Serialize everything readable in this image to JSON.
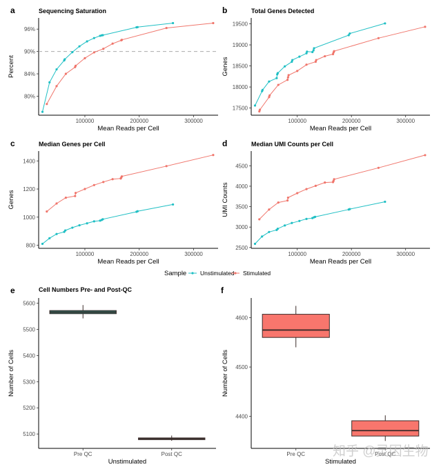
{
  "colors": {
    "unstimulated": "#1FBFC4",
    "stimulated": "#F0756B",
    "box_e_fill": "#2A7A70",
    "box_f_fill": "#F8766D",
    "box_line": "#3a2a28"
  },
  "legend": {
    "title": "Sample",
    "items": [
      "Unstimulated",
      "Stimulated"
    ],
    "position": "bottom-center"
  },
  "watermark": "知乎 @灵因生物",
  "chart_data": [
    {
      "id": "a",
      "letter": "a",
      "type": "line",
      "title": "Sequencing Saturation",
      "xlabel": "Mean Reads per Cell",
      "ylabel": "Percent",
      "xlim": [
        15000,
        345000
      ],
      "xticks": [
        100000,
        200000,
        300000
      ],
      "xtick_labels": [
        "100000",
        "200000",
        "300000"
      ],
      "ylim_px_ticks": true,
      "yticks": [
        0,
        1,
        2,
        3
      ],
      "ytick_labels": [
        "80%",
        "84%",
        "90%",
        "96%"
      ],
      "ylim": [
        -0.85,
        3.5
      ],
      "hline": {
        "value": 2,
        "label": "90%",
        "style": "dashed"
      },
      "series": [
        {
          "name": "Unstimulated",
          "x": [
            22000,
            35000,
            48000,
            62000,
            63000,
            77000,
            90000,
            104000,
            117000,
            128000,
            131000,
            133000,
            195000,
            197000,
            262000
          ],
          "y": [
            -0.7,
            0.62,
            1.2,
            1.6,
            1.65,
            1.97,
            2.23,
            2.45,
            2.6,
            2.7,
            2.72,
            2.73,
            3.08,
            3.09,
            3.27
          ]
        },
        {
          "name": "Stimulated",
          "x": [
            30000,
            48000,
            65000,
            82000,
            83000,
            100000,
            117000,
            134000,
            151000,
            167000,
            168000,
            250000,
            336000
          ],
          "y": [
            -0.35,
            0.45,
            1.0,
            1.3,
            1.36,
            1.7,
            1.96,
            2.12,
            2.35,
            2.5,
            2.52,
            3.05,
            3.27
          ]
        }
      ]
    },
    {
      "id": "b",
      "letter": "b",
      "type": "line",
      "title": "Total Genes Detected",
      "xlabel": "Mean Reads per Cell",
      "ylabel": "Genes",
      "xlim": [
        15000,
        345000
      ],
      "xticks": [
        100000,
        200000,
        300000
      ],
      "xtick_labels": [
        "100000",
        "200000",
        "300000"
      ],
      "yticks": [
        17500,
        18000,
        18500,
        19000,
        19500
      ],
      "ytick_labels": [
        "17500",
        "18000",
        "18500",
        "19000",
        "19500"
      ],
      "ylim": [
        17330,
        19640
      ],
      "series": [
        {
          "name": "Unstimulated",
          "x": [
            22000,
            35000,
            36000,
            48000,
            62000,
            63000,
            64000,
            77000,
            90000,
            91000,
            104000,
            117000,
            118000,
            128000,
            130000,
            131000,
            195000,
            197000,
            262000
          ],
          "y": [
            17560,
            17900,
            17930,
            18130,
            18210,
            18300,
            18330,
            18490,
            18600,
            18640,
            18720,
            18800,
            18840,
            18830,
            18870,
            18920,
            19230,
            19270,
            19510
          ]
        },
        {
          "name": "Stimulated",
          "x": [
            30000,
            31000,
            48000,
            49000,
            65000,
            82000,
            83000,
            84000,
            100000,
            117000,
            134000,
            135000,
            151000,
            166000,
            167000,
            168000,
            250000,
            336000
          ],
          "y": [
            17420,
            17460,
            17760,
            17800,
            18050,
            18170,
            18230,
            18280,
            18380,
            18530,
            18600,
            18640,
            18730,
            18780,
            18820,
            18850,
            19160,
            19430
          ]
        }
      ]
    },
    {
      "id": "c",
      "letter": "c",
      "type": "line",
      "title": "Median Genes per Cell",
      "xlabel": "Mean Reads per Cell",
      "ylabel": "Genes",
      "xlim": [
        15000,
        345000
      ],
      "xticks": [
        100000,
        200000,
        300000
      ],
      "xtick_labels": [
        "100000",
        "200000",
        "300000"
      ],
      "yticks": [
        800,
        1000,
        1200,
        1400
      ],
      "ytick_labels": [
        "800",
        "1000",
        "1200",
        "1400"
      ],
      "ylim": [
        778,
        1470
      ],
      "series": [
        {
          "name": "Unstimulated",
          "x": [
            22000,
            35000,
            48000,
            62000,
            64000,
            77000,
            90000,
            104000,
            117000,
            128000,
            131000,
            133000,
            195000,
            197000,
            262000
          ],
          "y": [
            810,
            850,
            880,
            895,
            905,
            925,
            942,
            956,
            970,
            975,
            980,
            985,
            1038,
            1042,
            1090
          ]
        },
        {
          "name": "Stimulated",
          "x": [
            30000,
            48000,
            65000,
            82000,
            83000,
            100000,
            117000,
            134000,
            151000,
            166000,
            167000,
            168000,
            250000,
            336000
          ],
          "y": [
            1040,
            1097,
            1138,
            1150,
            1172,
            1200,
            1228,
            1250,
            1270,
            1275,
            1282,
            1290,
            1363,
            1442
          ]
        }
      ]
    },
    {
      "id": "d",
      "letter": "d",
      "type": "line",
      "title": "Median UMI Counts per Cell",
      "xlabel": "Mean Reads per Cell",
      "ylabel": "UMI Counts",
      "xlim": [
        15000,
        345000
      ],
      "xticks": [
        100000,
        200000,
        300000
      ],
      "xtick_labels": [
        "100000",
        "200000",
        "300000"
      ],
      "yticks": [
        2500,
        3000,
        3500,
        4000,
        4500
      ],
      "ytick_labels": [
        "2500",
        "3000",
        "3500",
        "4000",
        "4500"
      ],
      "ylim": [
        2480,
        4860
      ],
      "series": [
        {
          "name": "Unstimulated",
          "x": [
            22000,
            35000,
            48000,
            62000,
            64000,
            77000,
            90000,
            104000,
            117000,
            128000,
            131000,
            133000,
            195000,
            197000,
            262000
          ],
          "y": [
            2590,
            2770,
            2880,
            2930,
            2960,
            3040,
            3100,
            3150,
            3200,
            3220,
            3240,
            3250,
            3430,
            3440,
            3620
          ]
        },
        {
          "name": "Stimulated",
          "x": [
            30000,
            48000,
            65000,
            82000,
            83000,
            100000,
            117000,
            134000,
            151000,
            166000,
            167000,
            168000,
            250000,
            336000
          ],
          "y": [
            3190,
            3430,
            3600,
            3650,
            3720,
            3830,
            3930,
            4010,
            4090,
            4100,
            4130,
            4170,
            4450,
            4760
          ]
        }
      ]
    },
    {
      "id": "e",
      "letter": "e",
      "type": "box",
      "title": "Cell Numbers Pre- and Post-QC",
      "xlabel": "Unstimulated",
      "ylabel": "Number of Cells",
      "categories": [
        "Pre QC",
        "Post QC"
      ],
      "yticks": [
        5100,
        5200,
        5300,
        5400,
        5500,
        5600
      ],
      "ytick_labels": [
        "5100",
        "5200",
        "5300",
        "5400",
        "5500",
        "5600"
      ],
      "ylim": [
        5045,
        5620
      ],
      "boxes": [
        {
          "category": "Pre QC",
          "min": 5542,
          "q1": 5560,
          "median": 5566,
          "q3": 5572,
          "max": 5593
        },
        {
          "category": "Post QC",
          "min": 5074,
          "q1": 5079,
          "median": 5082,
          "q3": 5085,
          "max": 5094
        }
      ]
    },
    {
      "id": "f",
      "letter": "f",
      "type": "box",
      "title": "",
      "xlabel": "Stimulated",
      "ylabel": "Number of Cells",
      "categories": [
        "Pre QC",
        "Post QC"
      ],
      "yticks": [
        4400,
        4500,
        4600
      ],
      "ytick_labels": [
        "4400",
        "4500",
        "4600"
      ],
      "ylim": [
        4335,
        4640
      ],
      "boxes": [
        {
          "category": "Pre QC",
          "min": 4540,
          "q1": 4560,
          "median": 4575,
          "q3": 4607,
          "max": 4624
        },
        {
          "category": "Post QC",
          "min": 4350,
          "q1": 4360,
          "median": 4371,
          "q3": 4391,
          "max": 4402
        }
      ]
    }
  ]
}
